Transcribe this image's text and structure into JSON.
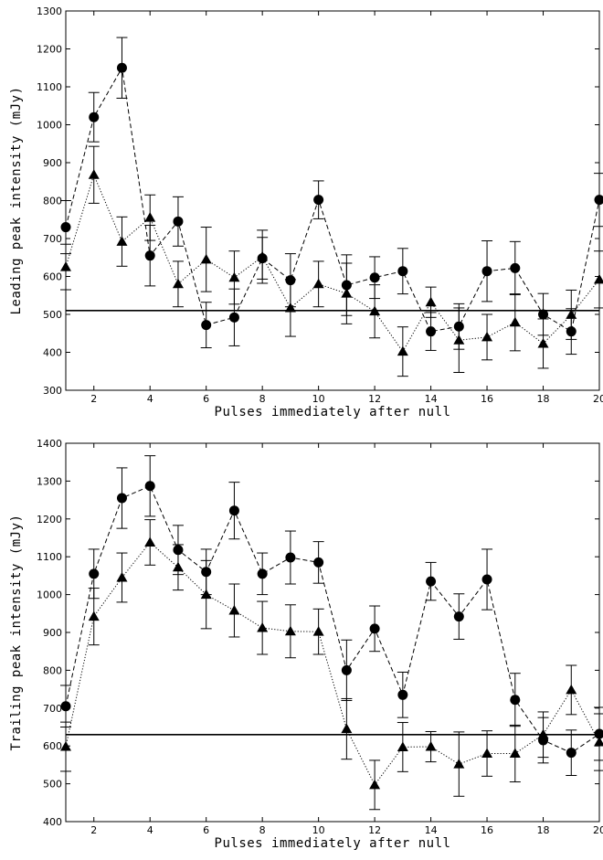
{
  "chart_data": [
    {
      "type": "line",
      "xlabel": "Pulses immediately after null",
      "ylabel": "Leading peak intensity (mJy)",
      "xlim": [
        1,
        20
      ],
      "ylim": [
        300,
        1300
      ],
      "xticks": [
        2,
        4,
        6,
        8,
        10,
        12,
        14,
        16,
        18,
        20
      ],
      "yticks": [
        300,
        400,
        500,
        600,
        700,
        800,
        900,
        1000,
        1100,
        1200,
        1300
      ],
      "reference_line": 510,
      "x": [
        1,
        2,
        3,
        4,
        5,
        6,
        7,
        8,
        9,
        10,
        11,
        12,
        13,
        14,
        15,
        16,
        17,
        18,
        19,
        20
      ],
      "series": [
        {
          "marker": "circle",
          "line": "dashed",
          "values": [
            730,
            1020,
            1150,
            655,
            745,
            472,
            492,
            648,
            590,
            802,
            577,
            597,
            614,
            455,
            468,
            614,
            622,
            500,
            455,
            802
          ],
          "errors": [
            70,
            65,
            80,
            80,
            65,
            60,
            75,
            55,
            70,
            50,
            80,
            55,
            60,
            50,
            60,
            80,
            70,
            55,
            60,
            70
          ]
        },
        {
          "marker": "triangle",
          "line": "dotted",
          "values": [
            625,
            868,
            692,
            755,
            580,
            645,
            597,
            652,
            517,
            580,
            555,
            508,
            402,
            532,
            432,
            440,
            479,
            423,
            499,
            592
          ],
          "errors": [
            60,
            75,
            65,
            60,
            60,
            85,
            70,
            70,
            75,
            60,
            80,
            70,
            65,
            40,
            85,
            60,
            75,
            65,
            65,
            75
          ]
        }
      ]
    },
    {
      "type": "line",
      "xlabel": "Pulses immediately after null",
      "ylabel": "Trailing peak intensity (mJy)",
      "xlim": [
        1,
        20
      ],
      "ylim": [
        400,
        1400
      ],
      "xticks": [
        2,
        4,
        6,
        8,
        10,
        12,
        14,
        16,
        18,
        20
      ],
      "yticks": [
        400,
        500,
        600,
        700,
        800,
        900,
        1000,
        1100,
        1200,
        1300,
        1400
      ],
      "reference_line": 630,
      "x": [
        1,
        2,
        3,
        4,
        5,
        6,
        7,
        8,
        9,
        10,
        11,
        12,
        13,
        14,
        15,
        16,
        17,
        18,
        19,
        20
      ],
      "series": [
        {
          "marker": "circle",
          "line": "dashed",
          "values": [
            705,
            1055,
            1255,
            1287,
            1118,
            1060,
            1222,
            1055,
            1098,
            1085,
            800,
            910,
            735,
            1035,
            942,
            1040,
            722,
            615,
            582,
            632
          ],
          "errors": [
            55,
            65,
            80,
            80,
            65,
            60,
            75,
            55,
            70,
            55,
            80,
            60,
            60,
            50,
            60,
            80,
            70,
            60,
            60,
            70
          ]
        },
        {
          "marker": "triangle",
          "line": "dotted",
          "values": [
            598,
            942,
            1045,
            1138,
            1072,
            1000,
            958,
            912,
            903,
            902,
            645,
            497,
            597,
            598,
            552,
            580,
            580,
            630,
            748,
            610
          ],
          "errors": [
            65,
            75,
            65,
            60,
            60,
            90,
            70,
            70,
            70,
            60,
            80,
            65,
            65,
            40,
            85,
            60,
            75,
            60,
            65,
            75
          ]
        }
      ]
    }
  ]
}
